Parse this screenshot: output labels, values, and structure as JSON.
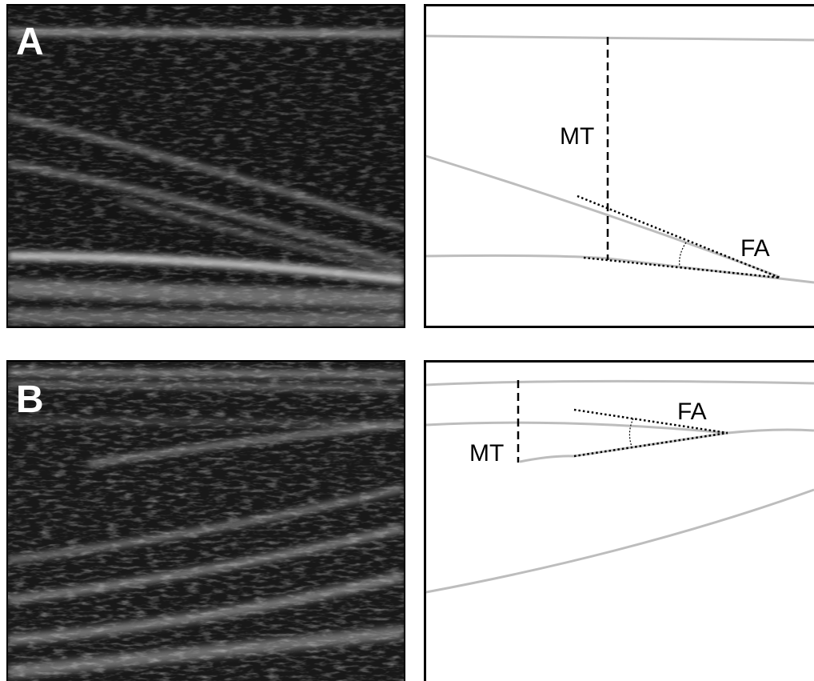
{
  "panels": [
    {
      "label": "A",
      "diagram": {
        "mt_label": "MT",
        "fa_label": "FA"
      }
    },
    {
      "label": "B",
      "diagram": {
        "mt_label": "MT",
        "fa_label": "FA"
      }
    }
  ]
}
